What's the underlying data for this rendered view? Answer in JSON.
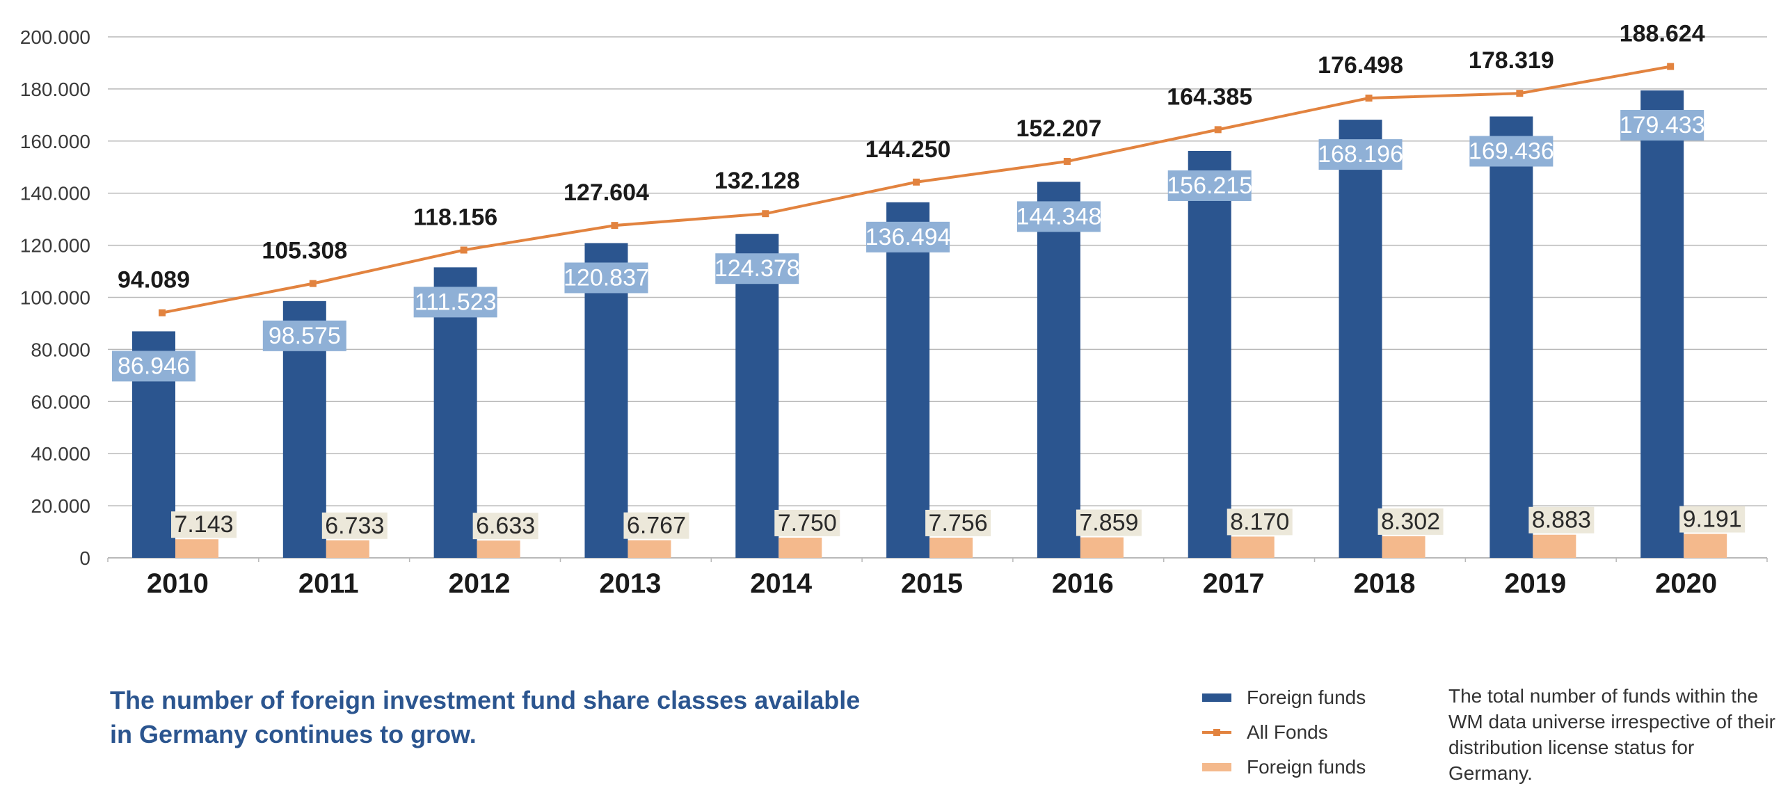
{
  "chart_data": {
    "type": "bar",
    "categories": [
      "2010",
      "2011",
      "2012",
      "2013",
      "2014",
      "2015",
      "2016",
      "2017",
      "2018",
      "2019",
      "2020"
    ],
    "y_ticks": [
      "0",
      "20.000",
      "40.000",
      "60.000",
      "80.000",
      "100.000",
      "120.000",
      "140.000",
      "160.000",
      "180.000",
      "200.000"
    ],
    "ylim": [
      0,
      200000
    ],
    "grid": true,
    "legend_position": "bottom-right",
    "series": [
      {
        "name": "Foreign funds",
        "kind": "bar",
        "color": "#2b558f",
        "values": [
          86946,
          98575,
          111523,
          120837,
          124378,
          136494,
          144348,
          156215,
          168196,
          169436,
          179433
        ],
        "labels": [
          "86.946",
          "98.575",
          "111.523",
          "120.837",
          "124.378",
          "136.494",
          "144.348",
          "156.215",
          "168.196",
          "169.436",
          "179.433"
        ]
      },
      {
        "name": "All Fonds",
        "kind": "line",
        "color": "#e2833f",
        "values": [
          94089,
          105308,
          118156,
          127604,
          132128,
          144250,
          152207,
          164385,
          176498,
          178319,
          188624
        ],
        "labels": [
          "94.089",
          "105.308",
          "118.156",
          "127.604",
          "132.128",
          "144.250",
          "152.207",
          "164.385",
          "176.498",
          "178.319",
          "188.624"
        ]
      },
      {
        "name": "Foreign funds",
        "kind": "bar",
        "color": "#f4b98c",
        "values": [
          7143,
          6733,
          6633,
          6767,
          7750,
          7756,
          7859,
          8170,
          8302,
          8883,
          9191
        ],
        "labels": [
          "7.143",
          "6.733",
          "6.633",
          "6.767",
          "7.750",
          "7.756",
          "7.859",
          "8.170",
          "8.302",
          "8.883",
          "9.191"
        ]
      }
    ]
  },
  "headline": {
    "line1": "The number of foreign investment fund share classes available",
    "line2": "in Germany continues to grow."
  },
  "legend": {
    "items": [
      {
        "label": "Foreign funds",
        "icon": "dark-blue-bar",
        "color": "#2b558f"
      },
      {
        "label": "All Fonds",
        "icon": "orange-line-with-marker",
        "color": "#e2833f"
      },
      {
        "label": "Foreign funds",
        "icon": "peach-bar",
        "color": "#f4b98c"
      }
    ]
  },
  "note": {
    "text": "The total number of funds within the WM data universe irrespective of their distribution license status for Germany."
  },
  "colors": {
    "label_box_blue": "#8fb0d6",
    "label_box_cream": "#ece8da",
    "grid": "#b9b9b9"
  }
}
